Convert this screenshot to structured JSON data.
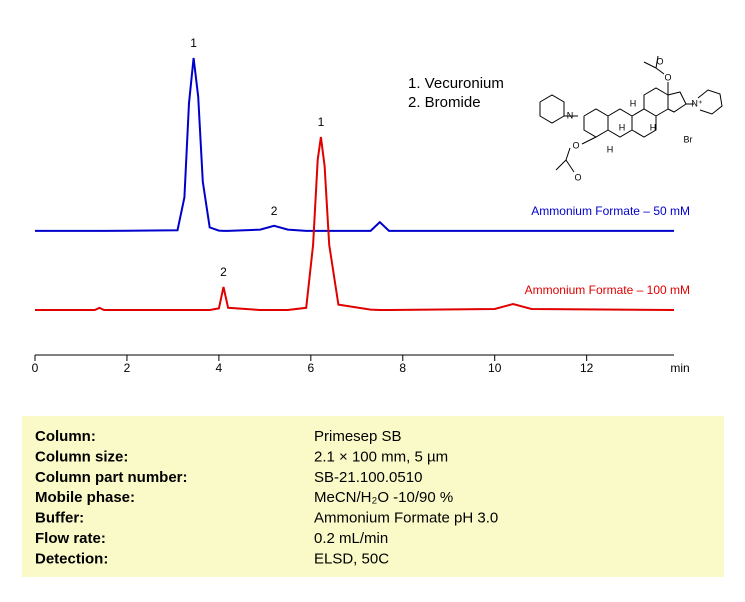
{
  "chart_data": {
    "type": "line",
    "x": [
      0,
      1.3,
      1.4,
      1.5,
      3.1,
      3.25,
      3.35,
      3.45,
      3.55,
      3.65,
      3.8,
      4.0,
      4.1,
      4.2,
      4.9,
      5.2,
      5.5,
      5.9,
      6.05,
      6.15,
      6.22,
      6.3,
      6.4,
      6.6,
      7.3,
      7.5,
      7.7,
      10.0,
      10.4,
      10.8,
      13.9
    ],
    "series": [
      {
        "name": "Ammonium Formate – 50 mM",
        "color": "#0000cc",
        "values": [
          39.4,
          39.4,
          39.4,
          39.4,
          39.6,
          50,
          80,
          94.3,
          82,
          55,
          40.5,
          39.5,
          39.4,
          39.4,
          39.8,
          41,
          39.8,
          39.4,
          39.4,
          39.4,
          39.4,
          39.4,
          39.4,
          39.4,
          39.4,
          42.2,
          39.4,
          39.4,
          39.4,
          39.4,
          39.4
        ]
      },
      {
        "name": "Ammonium Formate – 100 mM",
        "color": "#e00000",
        "values": [
          14.3,
          14.3,
          15,
          14.3,
          14.3,
          14.3,
          14.3,
          14.3,
          14.3,
          14.3,
          14.3,
          14.8,
          21.6,
          15,
          14.3,
          14.3,
          14.3,
          15,
          35,
          62,
          69.2,
          60,
          35,
          16,
          14.4,
          14.3,
          14.3,
          14.6,
          16.2,
          14.6,
          14.3
        ]
      }
    ],
    "annotations": [
      {
        "text": "1",
        "series": 0,
        "x": 3.45
      },
      {
        "text": "2",
        "series": 0,
        "x": 5.2
      },
      {
        "text": "1",
        "series": 1,
        "x": 6.22
      },
      {
        "text": "2",
        "series": 1,
        "x": 4.1
      }
    ],
    "xlabel": "min",
    "xlim": [
      0,
      13.9
    ],
    "xticks": [
      0,
      2,
      4,
      6,
      8,
      10,
      12
    ],
    "ylim": [
      0,
      100
    ],
    "compounds": [
      "1.  Vecuronium",
      "2.  Bromide"
    ],
    "structure_atoms": [
      "N",
      "N⁺",
      "O",
      "O",
      "O",
      "O",
      "H",
      "H",
      "H",
      "H",
      "Br"
    ]
  },
  "table": {
    "rows": [
      [
        "Column:",
        "Primesep  SB"
      ],
      [
        "Column size:",
        "2.1 × 100 mm, 5 µm"
      ],
      [
        "Column part number:",
        "SB-21.100.0510"
      ],
      [
        "Mobile phase:",
        "MeCN/H₂O -10/90 %"
      ],
      [
        "Buffer:",
        "Ammonium Formate pH 3.0"
      ],
      [
        "Flow rate:",
        "0.2 mL/min"
      ],
      [
        "Detection:",
        "ELSD, 50C"
      ]
    ]
  }
}
